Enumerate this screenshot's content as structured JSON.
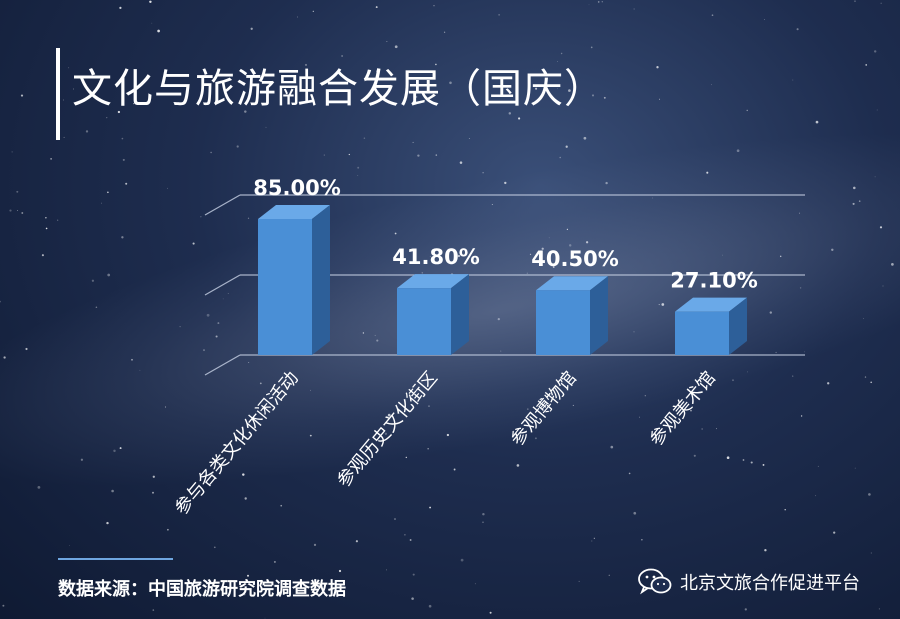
{
  "title": "文化与旅游融合发展（国庆）",
  "source": "数据来源：中国旅游研究院调查数据",
  "watermark": "北京文旅合作促进平台",
  "watermark_icon": "wechat-icon",
  "colors": {
    "bar_front": "#4a8fd6",
    "bar_side": "#2d5f99",
    "bar_top": "#6aa9e8",
    "text": "#ffffff"
  },
  "chart_data": {
    "type": "bar",
    "categories": [
      "参与各类文化休闲活动",
      "参观历史文化街区",
      "参观博物馆",
      "参观美术馆"
    ],
    "values": [
      85.0,
      41.8,
      40.5,
      27.1
    ],
    "value_labels": [
      "85.00%",
      "41.80%",
      "40.50%",
      "27.10%"
    ],
    "ylim": [
      0,
      100
    ],
    "grid": true,
    "legend": "none"
  }
}
